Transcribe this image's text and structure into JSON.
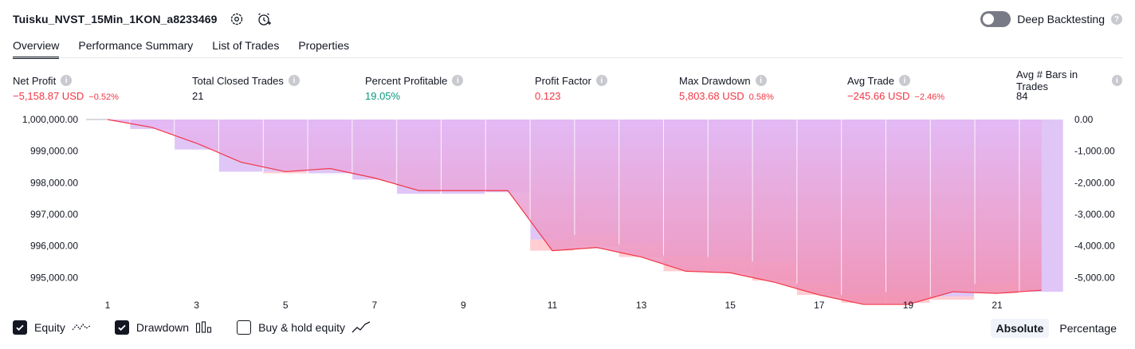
{
  "header": {
    "strategy_name": "Tuisku_NVST_15Min_1KON_a8233469",
    "deep_backtesting_label": "Deep Backtesting",
    "help_glyph": "?"
  },
  "tabs": [
    {
      "label": "Overview",
      "active": true
    },
    {
      "label": "Performance Summary",
      "active": false
    },
    {
      "label": "List of Trades",
      "active": false
    },
    {
      "label": "Properties",
      "active": false
    }
  ],
  "metrics": [
    {
      "label": "Net Profit",
      "value": "−5,158.87 USD",
      "pct": "−0.52%",
      "tone": "neg"
    },
    {
      "label": "Total Closed Trades",
      "value": "21",
      "pct": "",
      "tone": "neu"
    },
    {
      "label": "Percent Profitable",
      "value": "19.05%",
      "pct": "",
      "tone": "pos"
    },
    {
      "label": "Profit Factor",
      "value": "0.123",
      "pct": "",
      "tone": "neg"
    },
    {
      "label": "Max Drawdown",
      "value": "5,803.68 USD",
      "pct": "0.58%",
      "tone": "neg"
    },
    {
      "label": "Avg Trade",
      "value": "−245.66 USD",
      "pct": "−2.46%",
      "tone": "neg"
    },
    {
      "label": "Avg # Bars in Trades",
      "value": "84",
      "pct": "",
      "tone": "neu"
    }
  ],
  "info_glyph": "i",
  "chart_data": {
    "type": "line",
    "x_ticks": [
      "1",
      "3",
      "5",
      "7",
      "9",
      "11",
      "13",
      "15",
      "17",
      "19",
      "21"
    ],
    "left_axis": {
      "ticks": [
        "1,000,000.00",
        "999,000.00",
        "998,000.00",
        "997,000.00",
        "996,000.00",
        "995,000.00"
      ],
      "tick_values": [
        1000000,
        999000,
        998000,
        997000,
        996000,
        995000
      ],
      "range": [
        994000,
        1000000
      ]
    },
    "right_axis": {
      "ticks": [
        "0.00",
        "-1,000.00",
        "-2,000.00",
        "-3,000.00",
        "-4,000.00",
        "-5,000.00"
      ],
      "tick_values": [
        0,
        -1000,
        -2000,
        -3000,
        -4000,
        -5000
      ],
      "range": [
        -6000,
        0
      ]
    },
    "equity": {
      "x": [
        1,
        2,
        3,
        4,
        5,
        6,
        7,
        8,
        9,
        10,
        11,
        12,
        13,
        14,
        15,
        16,
        17,
        18,
        19,
        20,
        21,
        22
      ],
      "values": [
        1000000,
        999750,
        999250,
        998650,
        998350,
        998450,
        998150,
        997750,
        997750,
        997750,
        995850,
        995950,
        995650,
        995200,
        995150,
        994850,
        994450,
        994150,
        994150,
        994550,
        994500,
        994600
      ]
    },
    "drawdown": {
      "x": [
        1,
        2,
        3,
        4,
        5,
        6,
        7,
        8,
        9,
        10,
        11,
        12,
        13,
        14,
        15,
        16,
        17,
        18,
        19,
        20,
        21,
        22
      ],
      "values": [
        0,
        -300,
        -950,
        -1650,
        -1650,
        -1700,
        -1900,
        -2350,
        -2350,
        -2300,
        -3800,
        -3650,
        -3950,
        -4300,
        -4350,
        -4500,
        -5200,
        -5550,
        -5450,
        -5600,
        -5200,
        -5450
      ],
      "peak_to_trough": [
        0,
        0,
        -300,
        -1400,
        -1700,
        -1600,
        -1850,
        -2250,
        -2250,
        -2250,
        -4150,
        -4000,
        -4350,
        -4800,
        -4850,
        -5100,
        -5550,
        -5800,
        -5800,
        -5700,
        -5500,
        -5400
      ]
    },
    "colors": {
      "equity_line": "#f23645",
      "drawdown_bar": "#dfc6f7",
      "fill_top": "#e3b8f5",
      "fill_bottom": "#f28fb0",
      "drawdown_peak": "#ffcdd2"
    }
  },
  "footer": {
    "options": [
      {
        "label": "Equity",
        "checked": true,
        "icon": "equity-wave-icon"
      },
      {
        "label": "Drawdown",
        "checked": true,
        "icon": "drawdown-bars-icon"
      },
      {
        "label": "Buy & hold equity",
        "checked": false,
        "icon": "buy-hold-line-icon"
      }
    ],
    "modes": [
      {
        "label": "Absolute",
        "active": true
      },
      {
        "label": "Percentage",
        "active": false
      }
    ]
  }
}
